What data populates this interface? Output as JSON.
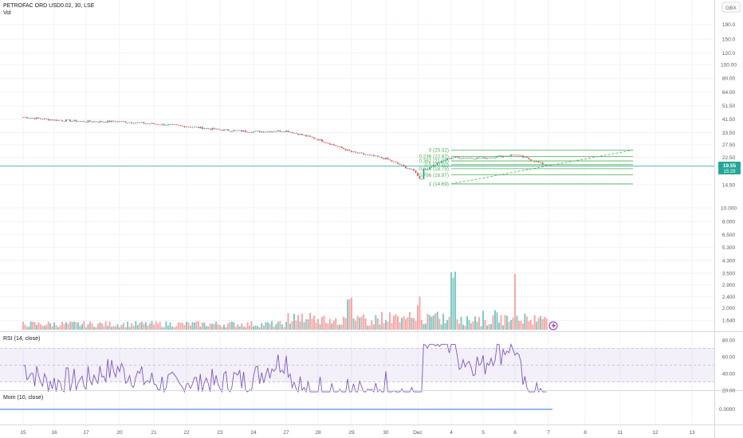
{
  "header": {
    "symbol": "PETROFAC ORD USD0.02, 30, LSE",
    "volume_label": "Vol",
    "currency": "GBX"
  },
  "price_axis": {
    "ticks": [
      "190.0",
      "150.0",
      "120.0",
      "100.00",
      "80.00",
      "64.00",
      "51.50",
      "41.50",
      "33.50",
      "27.50",
      "22.50",
      "19.55",
      "17.29",
      "14.50",
      "10.000",
      "8.000",
      "6.500",
      "5.300",
      "4.300",
      "3.500",
      "2.900",
      "2.400",
      "2.000",
      "1.640"
    ],
    "last_price": "19.55",
    "last_time": "15:29",
    "scale": "log"
  },
  "fib": {
    "levels": [
      {
        "ratio": "0",
        "price": "25.32"
      },
      {
        "ratio": "0.236",
        "price": "22.82"
      },
      {
        "ratio": "0.382",
        "price": "21.26"
      },
      {
        "ratio": "0.5",
        "price": "20.00"
      },
      {
        "ratio": "0.618",
        "price": "18.75"
      },
      {
        "ratio": "0.786",
        "price": "16.97"
      },
      {
        "ratio": "1",
        "price": "14.69"
      }
    ],
    "color": "#4caf50"
  },
  "rsi": {
    "label": "RSI (14, close)",
    "ticks": [
      "80.00",
      "60.00",
      "40.00",
      "20.00"
    ],
    "upper": 70,
    "lower": 30,
    "color": "#7e57c2"
  },
  "mom": {
    "label": "Mom (10, close)",
    "tick": "0.0000",
    "color": "#2962ff"
  },
  "time_axis": {
    "labels": [
      "15",
      "16",
      "17",
      "20",
      "21",
      "22",
      "23",
      "24",
      "27",
      "28",
      "29",
      "30",
      "Dec",
      "4",
      "5",
      "6",
      "7",
      "8",
      "11",
      "12",
      "13"
    ]
  },
  "chart_data": {
    "type": "candlestick",
    "x_labels": [
      "15",
      "16",
      "17",
      "20",
      "21",
      "22",
      "23",
      "24",
      "27",
      "28",
      "29",
      "30",
      "Dec",
      "4",
      "5",
      "6",
      "7"
    ],
    "close_series": [
      {
        "x": "15",
        "close": 43.0
      },
      {
        "x": "16",
        "close": 41.0
      },
      {
        "x": "17",
        "close": 40.0
      },
      {
        "x": "20",
        "close": 40.0
      },
      {
        "x": "21",
        "close": 38.5
      },
      {
        "x": "22",
        "close": 37.0
      },
      {
        "x": "23",
        "close": 35.0
      },
      {
        "x": "24",
        "close": 34.0
      },
      {
        "x": "27",
        "close": 34.5
      },
      {
        "x": "28",
        "close": 30.0
      },
      {
        "x": "29",
        "close": 24.5
      },
      {
        "x": "30",
        "close": 22.0
      },
      {
        "x": "Dec",
        "close": 17.5
      },
      {
        "x": "4",
        "close": 22.5
      },
      {
        "x": "5",
        "close": 22.2
      },
      {
        "x": "6",
        "close": 23.5
      },
      {
        "x": "7",
        "close": 19.55
      }
    ],
    "up_color": "#26a69a",
    "down_color": "#ef5350",
    "grid": true
  }
}
